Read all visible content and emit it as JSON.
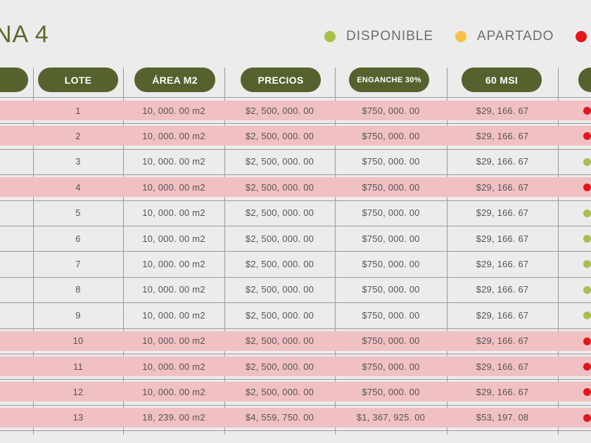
{
  "title": "NA 4",
  "legend": [
    {
      "label": "DISPONIBLE",
      "color": "#a8c04a"
    },
    {
      "label": "APARTADO",
      "color": "#f6c244"
    },
    {
      "label": "",
      "color": "#e2161b"
    }
  ],
  "headers": [
    "",
    "LOTE",
    "ÁREA M2",
    "PRECIOS",
    "ENGANCHE 30%",
    "60 MSI",
    ""
  ],
  "status_colors": {
    "disponible": "#a8c04a",
    "apartado": "#f6c244",
    "vendido": "#e2161b"
  },
  "rows": [
    {
      "lote": "1",
      "area": "10, 000. 00 m2",
      "precio": "$2, 500, 000. 00",
      "enganche": "$750, 000. 00",
      "msi": "$29, 166. 67",
      "status": "vendido"
    },
    {
      "lote": "2",
      "area": "10, 000. 00 m2",
      "precio": "$2, 500, 000. 00",
      "enganche": "$750, 000. 00",
      "msi": "$29, 166. 67",
      "status": "vendido"
    },
    {
      "lote": "3",
      "area": "10, 000. 00 m2",
      "precio": "$2, 500, 000. 00",
      "enganche": "$750, 000. 00",
      "msi": "$29, 166. 67",
      "status": "disponible"
    },
    {
      "lote": "4",
      "area": "10, 000. 00 m2",
      "precio": "$2, 500, 000. 00",
      "enganche": "$750, 000. 00",
      "msi": "$29, 166. 67",
      "status": "vendido"
    },
    {
      "lote": "5",
      "area": "10, 000. 00 m2",
      "precio": "$2, 500, 000. 00",
      "enganche": "$750, 000. 00",
      "msi": "$29, 166. 67",
      "status": "disponible"
    },
    {
      "lote": "6",
      "area": "10, 000. 00 m2",
      "precio": "$2, 500, 000. 00",
      "enganche": "$750, 000. 00",
      "msi": "$29, 166. 67",
      "status": "disponible"
    },
    {
      "lote": "7",
      "area": "10, 000. 00 m2",
      "precio": "$2, 500, 000. 00",
      "enganche": "$750, 000. 00",
      "msi": "$29, 166. 67",
      "status": "disponible"
    },
    {
      "lote": "8",
      "area": "10, 000. 00 m2",
      "precio": "$2, 500, 000. 00",
      "enganche": "$750, 000. 00",
      "msi": "$29, 166. 67",
      "status": "disponible"
    },
    {
      "lote": "9",
      "area": "10, 000. 00 m2",
      "precio": "$2, 500, 000. 00",
      "enganche": "$750, 000. 00",
      "msi": "$29, 166. 67",
      "status": "disponible"
    },
    {
      "lote": "10",
      "area": "10, 000. 00 m2",
      "precio": "$2, 500, 000. 00",
      "enganche": "$750, 000. 00",
      "msi": "$29, 166. 67",
      "status": "vendido"
    },
    {
      "lote": "11",
      "area": "10, 000. 00 m2",
      "precio": "$2, 500, 000. 00",
      "enganche": "$750, 000. 00",
      "msi": "$29, 166. 67",
      "status": "vendido"
    },
    {
      "lote": "12",
      "area": "10, 000. 00 m2",
      "precio": "$2, 500, 000. 00",
      "enganche": "$750, 000. 00",
      "msi": "$29, 166. 67",
      "status": "vendido"
    },
    {
      "lote": "13",
      "area": "18, 239. 00 m2",
      "precio": "$4, 559, 750. 00",
      "enganche": "$1, 367, 925. 00",
      "msi": "$53, 197. 08",
      "status": "vendido"
    }
  ]
}
